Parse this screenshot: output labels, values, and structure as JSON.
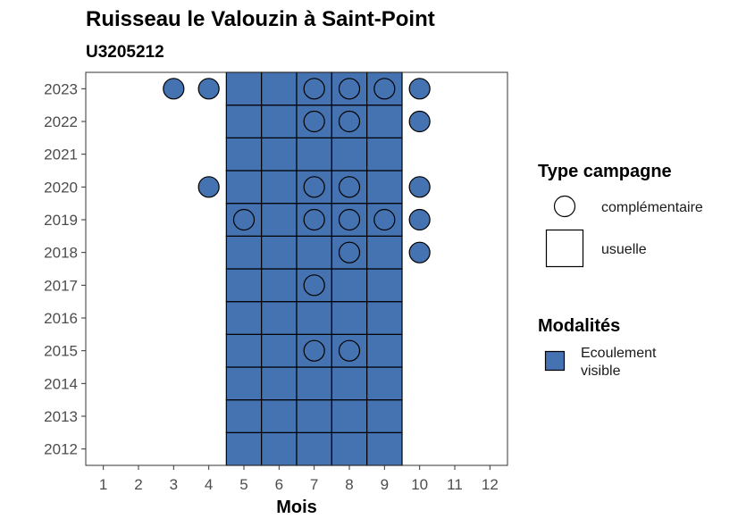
{
  "chart_data": {
    "type": "heatmap",
    "title": "Ruisseau le Valouzin à Saint-Point",
    "subtitle": "U3205212",
    "xlabel": "Mois",
    "ylabel": "",
    "x_ticks": [
      1,
      2,
      3,
      4,
      5,
      6,
      7,
      8,
      9,
      10,
      11,
      12
    ],
    "y_ticks": [
      2012,
      2013,
      2014,
      2015,
      2016,
      2017,
      2018,
      2019,
      2020,
      2021,
      2022,
      2023
    ],
    "xlim": [
      0.5,
      12.5
    ],
    "ylim": [
      2011.5,
      2023.5
    ],
    "fill_color": "#4572b0",
    "legend_shape": {
      "title": "Type campagne",
      "entries": [
        {
          "label": "complémentaire",
          "shape": "circle"
        },
        {
          "label": "usuelle",
          "shape": "square"
        }
      ]
    },
    "legend_fill": {
      "title": "Modalités",
      "entries": [
        {
          "label_lines": [
            "Ecoulement",
            "visible"
          ],
          "color": "#4572b0"
        }
      ]
    },
    "squares": {
      "months": [
        5,
        6,
        7,
        8,
        9
      ],
      "years": [
        2012,
        2013,
        2014,
        2015,
        2016,
        2017,
        2018,
        2019,
        2020,
        2021,
        2022,
        2023
      ],
      "modalite": "Ecoulement visible",
      "type": "usuelle"
    },
    "circles": [
      {
        "year": 2023,
        "month": 3
      },
      {
        "year": 2023,
        "month": 4
      },
      {
        "year": 2023,
        "month": 7
      },
      {
        "year": 2023,
        "month": 8
      },
      {
        "year": 2023,
        "month": 9
      },
      {
        "year": 2023,
        "month": 10
      },
      {
        "year": 2022,
        "month": 7
      },
      {
        "year": 2022,
        "month": 8
      },
      {
        "year": 2022,
        "month": 10
      },
      {
        "year": 2020,
        "month": 4
      },
      {
        "year": 2020,
        "month": 7
      },
      {
        "year": 2020,
        "month": 8
      },
      {
        "year": 2020,
        "month": 10
      },
      {
        "year": 2019,
        "month": 5
      },
      {
        "year": 2019,
        "month": 7
      },
      {
        "year": 2019,
        "month": 8
      },
      {
        "year": 2019,
        "month": 9
      },
      {
        "year": 2019,
        "month": 10
      },
      {
        "year": 2018,
        "month": 8
      },
      {
        "year": 2018,
        "month": 10
      },
      {
        "year": 2017,
        "month": 7
      },
      {
        "year": 2015,
        "month": 7
      },
      {
        "year": 2015,
        "month": 8
      }
    ]
  }
}
